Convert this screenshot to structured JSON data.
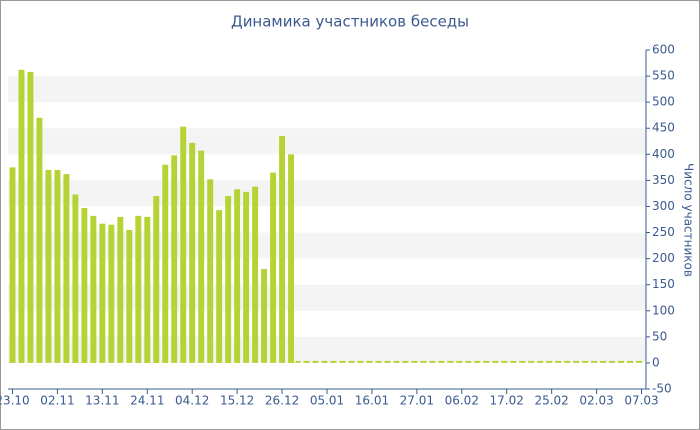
{
  "chart_data": {
    "type": "bar",
    "title": "Динамика участников беседы",
    "y_label": "Число участников",
    "categories": [
      "23.10",
      null,
      null,
      null,
      null,
      "02.11",
      null,
      null,
      null,
      null,
      "13.11",
      null,
      null,
      null,
      null,
      "24.11",
      null,
      null,
      null,
      null,
      "04.12",
      null,
      null,
      null,
      null,
      "15.12",
      null,
      null,
      null,
      null,
      "26.12",
      null,
      null,
      null,
      null,
      "05.01",
      null,
      null,
      null,
      null,
      "16.01",
      null,
      null,
      null,
      null,
      "27.01",
      null,
      null,
      null,
      null,
      "06.02",
      null,
      null,
      null,
      null,
      "17.02",
      null,
      null,
      null,
      null,
      "25.02",
      null,
      null,
      null,
      null,
      "02.03",
      null,
      null,
      null,
      null,
      "07.03"
    ],
    "values": [
      375,
      562,
      558,
      470,
      370,
      370,
      362,
      323,
      297,
      282,
      267,
      265,
      280,
      255,
      282,
      280,
      320,
      380,
      398,
      453,
      422,
      407,
      352,
      293,
      320,
      333,
      328,
      338,
      180,
      365,
      435,
      400,
      0,
      0,
      0,
      0,
      0,
      0,
      0,
      0,
      0,
      0,
      0,
      0,
      0,
      0,
      0,
      0,
      0,
      0,
      0,
      0,
      0,
      0,
      0,
      0,
      0,
      0,
      0,
      0,
      0,
      0,
      0,
      0,
      0,
      0,
      0,
      0,
      0,
      0,
      0
    ],
    "color": "#b5d334",
    "ylim": [
      -50,
      600
    ],
    "yticks": [
      -50,
      0,
      50,
      100,
      150,
      200,
      250,
      300,
      350,
      400,
      450,
      500,
      550,
      600
    ],
    "grid": true,
    "y_axis_side": "right"
  }
}
